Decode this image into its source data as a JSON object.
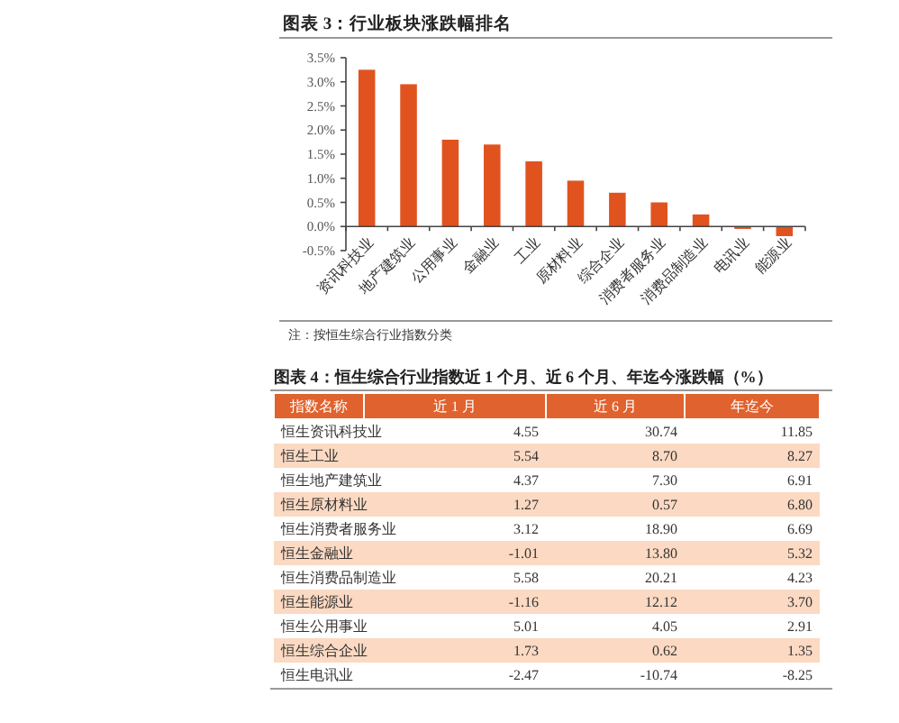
{
  "chart_data": [
    {
      "type": "bar",
      "title": "图表 3：行业板块涨跌幅排名",
      "categories": [
        "资讯科技业",
        "地产建筑业",
        "公用事业",
        "金融业",
        "工业",
        "原材料业",
        "综合企业",
        "消费者服务业",
        "消费品制造业",
        "电讯业",
        "能源业"
      ],
      "values": [
        3.25,
        2.95,
        1.8,
        1.7,
        1.35,
        0.95,
        0.7,
        0.5,
        0.25,
        -0.05,
        -0.2
      ],
      "color": "#e0531f",
      "ylim": [
        -0.5,
        3.5
      ],
      "yticks": [
        {
          "value": -0.5,
          "label": "-0.5%"
        },
        {
          "value": 0,
          "label": "0.0%"
        },
        {
          "value": 0.5,
          "label": "0.5%"
        },
        {
          "value": 1,
          "label": "1.0%"
        },
        {
          "value": 1.5,
          "label": "1.5%"
        },
        {
          "value": 2,
          "label": "2.0%"
        },
        {
          "value": 2.5,
          "label": "2.5%"
        },
        {
          "value": 3,
          "label": "3.0%"
        },
        {
          "value": 3.5,
          "label": "3.5%"
        }
      ],
      "annotations": [
        "注：按恒生综合行业指数分类"
      ]
    },
    {
      "type": "other",
      "title": "图表 4：恒生综合行业指数近 1 个月、近 6 个月、年迄今涨跌幅（%）",
      "ylabel": "指数名称",
      "categories": [
        "恒生资讯科技业",
        "恒生工业",
        "恒生地产建筑业",
        "恒生原材料业",
        "恒生消费者服务业",
        "恒生金融业",
        "恒生消费品制造业",
        "恒生能源业",
        "恒生公用事业",
        "恒生综合企业",
        "恒生电讯业"
      ],
      "series": [
        {
          "name": "近 1 月",
          "values": [
            4.55,
            5.54,
            4.37,
            1.27,
            3.12,
            -1.01,
            5.58,
            -1.16,
            5.01,
            1.73,
            -2.47
          ],
          "value_labels": [
            "4.55",
            "5.54",
            "4.37",
            "1.27",
            "3.12",
            "-1.01",
            "5.58",
            "-1.16",
            "5.01",
            "1.73",
            "-2.47"
          ]
        },
        {
          "name": "近 6 月",
          "values": [
            30.74,
            8.7,
            7.3,
            0.57,
            18.9,
            13.8,
            20.21,
            12.12,
            4.05,
            0.62,
            -10.74
          ],
          "value_labels": [
            "30.74",
            "8.70",
            "7.30",
            "0.57",
            "18.90",
            "13.80",
            "20.21",
            "12.12",
            "4.05",
            "0.62",
            "-10.74"
          ]
        },
        {
          "name": "年迄今",
          "values": [
            11.85,
            8.27,
            6.91,
            6.8,
            6.69,
            5.32,
            4.23,
            3.7,
            2.91,
            1.35,
            -8.25
          ],
          "value_labels": [
            "11.85",
            "8.27",
            "6.91",
            "6.80",
            "6.69",
            "5.32",
            "4.23",
            "3.70",
            "2.91",
            "1.35",
            "-8.25"
          ]
        }
      ]
    }
  ]
}
